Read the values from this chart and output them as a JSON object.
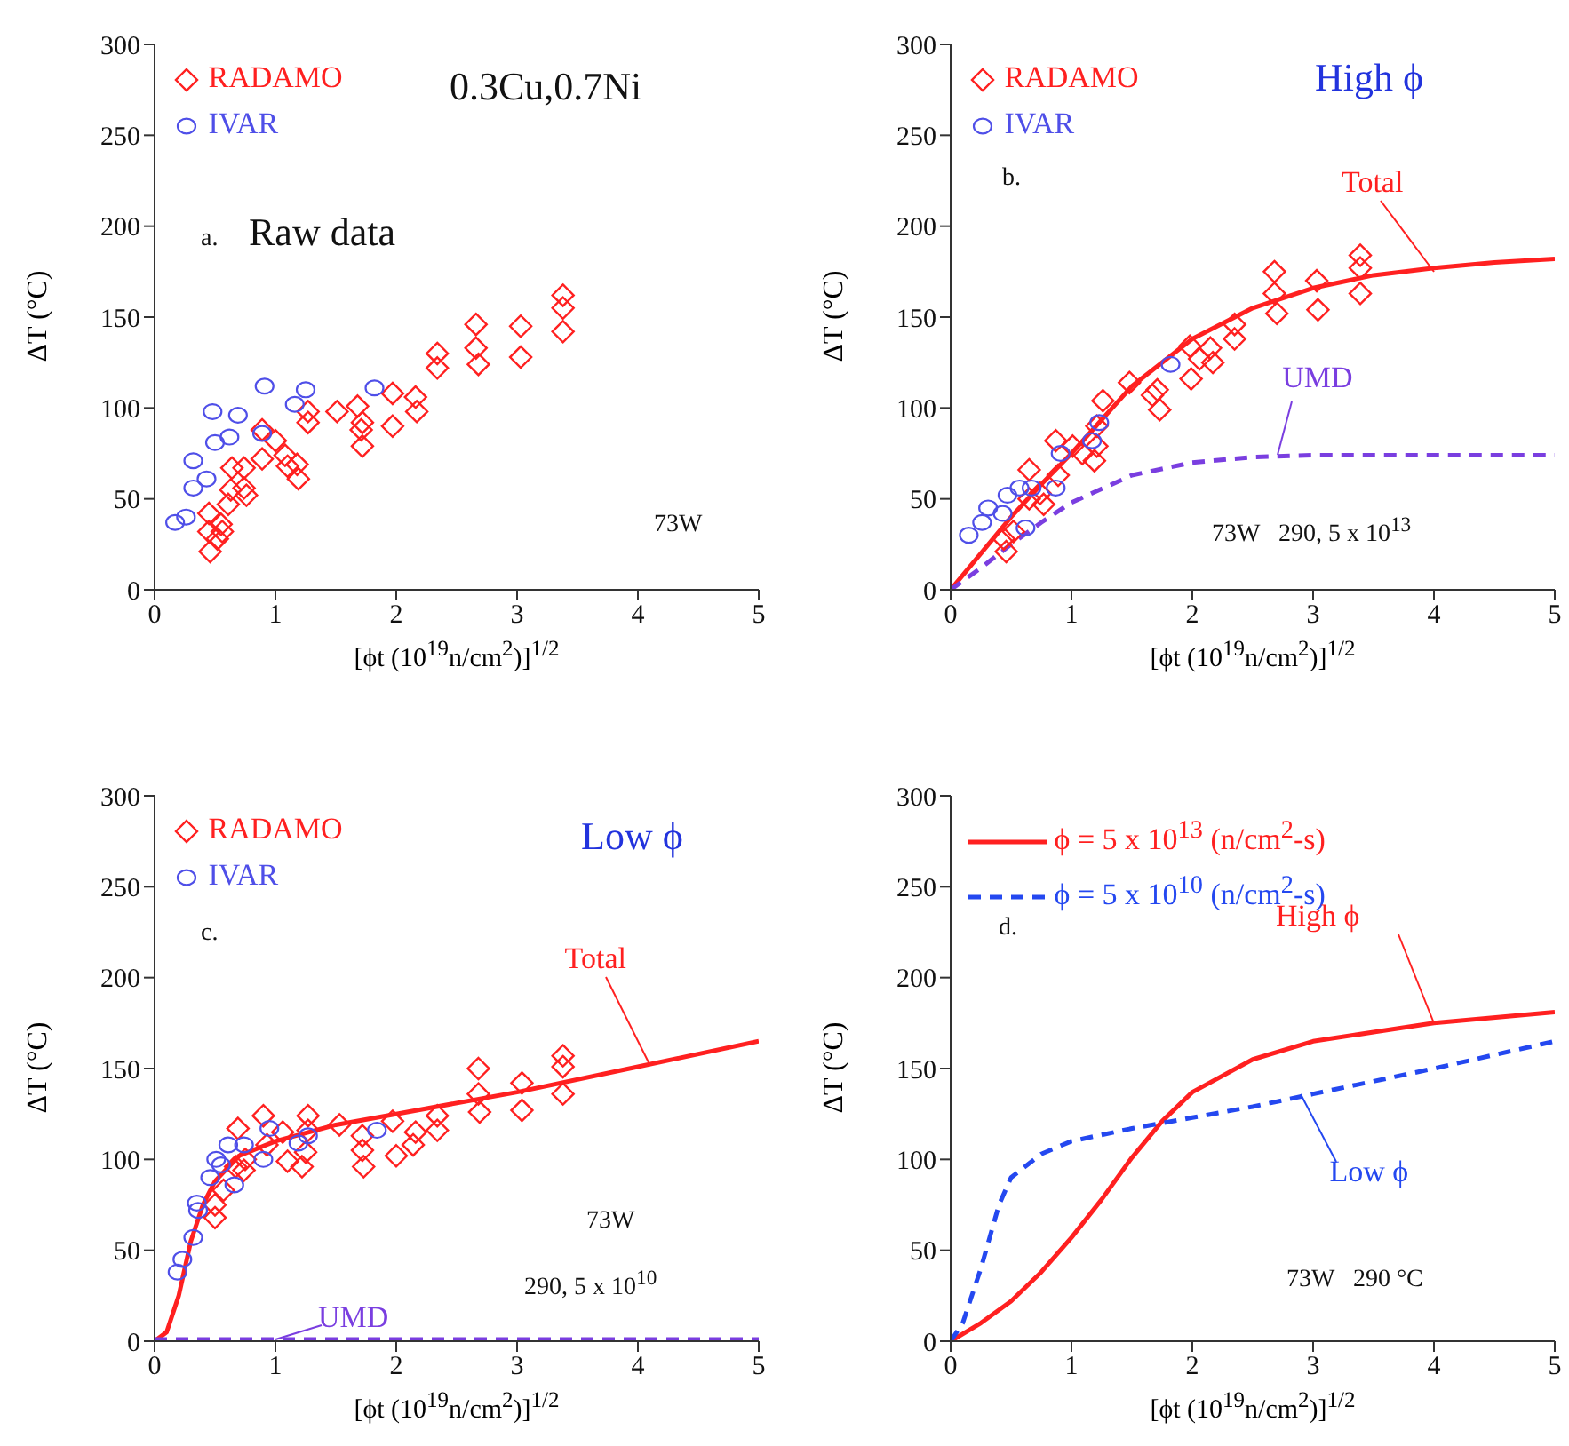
{
  "chart_data": [
    {
      "type": "scatter",
      "xlabel": "[ϕt (10$^{19}$n/cm$^{2}$)]$^{1/2}$",
      "ylabel": "ΔT (°C)",
      "xlim": [
        0,
        5
      ],
      "ylim": [
        0,
        300
      ],
      "xticks": [
        0,
        1,
        2,
        3,
        4,
        5
      ],
      "yticks": [
        0,
        50,
        100,
        150,
        200,
        250,
        300
      ],
      "legend": "top left",
      "annotations": [
        "0.3Cu,0.7Ni",
        "a.",
        "Raw data",
        "73W"
      ],
      "series": [
        {
          "name": "RADAMO",
          "color": "#ff2020",
          "marker": "diamond",
          "x": [
            0.46,
            0.45,
            0.45,
            0.55,
            0.56,
            0.52,
            0.61,
            0.63,
            0.64,
            0.74,
            0.74,
            0.76,
            0.89,
            0.89,
            1.0,
            1.08,
            1.1,
            1.18,
            1.19,
            1.27,
            1.27,
            1.51,
            1.68,
            1.72,
            1.72,
            1.71,
            1.97,
            1.97,
            2.16,
            2.17,
            2.34,
            2.34,
            2.66,
            2.66,
            2.68,
            3.03,
            3.03,
            3.38,
            3.38,
            3.38
          ],
          "values": [
            21,
            32,
            42,
            36,
            32,
            28,
            47,
            55,
            67,
            67,
            56,
            52,
            72,
            88,
            82,
            74,
            68,
            69,
            61,
            92,
            98,
            98,
            101,
            92,
            79,
            88,
            108,
            90,
            106,
            98,
            130,
            122,
            146,
            133,
            124,
            145,
            128,
            162,
            155,
            142
          ]
        },
        {
          "name": "IVAR",
          "color": "#4f4fe8",
          "marker": "circle",
          "x": [
            0.17,
            0.26,
            0.32,
            0.32,
            0.43,
            0.48,
            0.5,
            0.62,
            0.69,
            0.89,
            0.91,
            1.16,
            1.25,
            1.82
          ],
          "values": [
            37,
            40,
            56,
            71,
            61,
            98,
            81,
            84,
            96,
            86,
            112,
            102,
            110,
            111
          ]
        }
      ]
    },
    {
      "type": "scatter",
      "xlabel": "[ϕt (10$^{19}$n/cm$^{2}$)]$^{1/2}$",
      "ylabel": "ΔT (°C)",
      "xlim": [
        0,
        5
      ],
      "ylim": [
        0,
        300
      ],
      "xticks": [
        0,
        1,
        2,
        3,
        4,
        5
      ],
      "yticks": [
        0,
        50,
        100,
        150,
        200,
        250,
        300
      ],
      "legend": "top left",
      "annotations": [
        "High ϕ",
        "b.",
        "73W   290, 5 x 10$^{13}$",
        {
          "text": "Total",
          "x": 4.0,
          "y": 175
        },
        {
          "text": "UMD",
          "x": 2.7,
          "y": 74
        }
      ],
      "series": [
        {
          "name": "RADAMO",
          "color": "#ff2020",
          "marker": "diamond",
          "x": [
            0.46,
            0.44,
            0.52,
            0.65,
            0.65,
            0.74,
            0.77,
            0.87,
            0.89,
            1.01,
            1.09,
            1.19,
            1.21,
            1.21,
            1.26,
            1.48,
            1.67,
            1.71,
            1.73,
            1.98,
            1.99,
            2.06,
            2.15,
            2.17,
            2.35,
            2.35,
            2.68,
            2.68,
            2.7,
            3.03,
            3.04,
            3.39,
            3.39,
            3.39
          ],
          "values": [
            21,
            28,
            32,
            66,
            50,
            53,
            47,
            82,
            63,
            79,
            75,
            71,
            79,
            90,
            104,
            114,
            107,
            110,
            99,
            134,
            116,
            127,
            133,
            125,
            146,
            138,
            175,
            163,
            152,
            170,
            154,
            184,
            177,
            163
          ]
        },
        {
          "name": "IVAR",
          "color": "#4f4fe8",
          "marker": "circle",
          "x": [
            0.15,
            0.26,
            0.31,
            0.43,
            0.47,
            0.57,
            0.67,
            0.62,
            0.87,
            0.91,
            1.17,
            1.23,
            1.82
          ],
          "values": [
            30,
            37,
            45,
            42,
            52,
            56,
            56,
            34,
            56,
            75,
            82,
            92,
            124
          ]
        },
        {
          "type": "line",
          "color": "#ff2020",
          "line_style": "solid",
          "x": [
            0,
            0.25,
            0.5,
            0.75,
            1,
            1.5,
            2,
            2.5,
            3,
            3.5,
            4,
            4.5,
            5
          ],
          "values": [
            0,
            20,
            40,
            58,
            75,
            112,
            138,
            155,
            166,
            173,
            177,
            180,
            182
          ]
        },
        {
          "type": "line",
          "color": "#7a3ee0",
          "line_style": "dashed",
          "x": [
            0,
            0.25,
            0.5,
            0.75,
            1,
            1.5,
            2,
            2.5,
            3,
            5
          ],
          "values": [
            0,
            12,
            25,
            37,
            48,
            63,
            70,
            73,
            74,
            74
          ]
        }
      ]
    },
    {
      "type": "scatter",
      "xlabel": "[ϕt (10$^{19}$n/cm$^{2}$)]$^{1/2}$",
      "ylabel": "ΔT (°C)",
      "xlim": [
        0,
        5
      ],
      "ylim": [
        0,
        300
      ],
      "xticks": [
        0,
        1,
        2,
        3,
        4,
        5
      ],
      "yticks": [
        0,
        50,
        100,
        150,
        200,
        250,
        300
      ],
      "legend": "top left",
      "annotations": [
        "Low ϕ",
        "c.",
        "73W",
        "290, 5 x 10$^{10}$",
        {
          "text": "Total",
          "x": 4.1,
          "y": 151
        },
        {
          "text": "UMD",
          "x": 1.0,
          "y": 1
        }
      ],
      "series": [
        {
          "name": "RADAMO",
          "color": "#ff2020",
          "marker": "diamond",
          "x": [
            0.5,
            0.5,
            0.57,
            0.67,
            0.69,
            0.74,
            0.75,
            0.9,
            0.93,
            1.06,
            1.1,
            1.22,
            1.25,
            1.27,
            1.27,
            1.53,
            1.72,
            1.72,
            1.73,
            1.97,
            2.0,
            2.14,
            2.16,
            2.34,
            2.34,
            2.68,
            2.68,
            2.69,
            3.04,
            3.04,
            3.38,
            3.38,
            3.38
          ],
          "values": [
            68,
            75,
            83,
            96,
            117,
            94,
            100,
            124,
            108,
            115,
            99,
            96,
            104,
            124,
            116,
            119,
            113,
            105,
            96,
            121,
            102,
            108,
            115,
            124,
            116,
            150,
            136,
            126,
            142,
            127,
            157,
            151,
            136
          ]
        },
        {
          "name": "IVAR",
          "color": "#4f4fe8",
          "marker": "circle",
          "x": [
            0.19,
            0.23,
            0.32,
            0.35,
            0.36,
            0.46,
            0.51,
            0.55,
            0.61,
            0.66,
            0.74,
            0.9,
            0.95,
            1.19,
            1.27,
            1.84
          ],
          "values": [
            38,
            45,
            57,
            76,
            72,
            90,
            100,
            97,
            108,
            86,
            108,
            100,
            117,
            109,
            113,
            116
          ]
        },
        {
          "type": "line",
          "color": "#ff2020",
          "line_style": "solid",
          "x": [
            0,
            0.1,
            0.2,
            0.3,
            0.4,
            0.5,
            0.7,
            1,
            1.5,
            2,
            3,
            4,
            5
          ],
          "values": [
            0,
            5,
            25,
            55,
            75,
            88,
            102,
            110,
            119,
            125,
            137,
            151,
            165
          ]
        },
        {
          "type": "line",
          "color": "#7a3ee0",
          "line_style": "dashed",
          "x": [
            0,
            5
          ],
          "values": [
            1,
            1
          ]
        }
      ]
    },
    {
      "type": "line",
      "xlabel": "[ϕt (10$^{19}$n/cm$^{2}$)]$^{1/2}$",
      "ylabel": "ΔT (°C)",
      "xlim": [
        0,
        5
      ],
      "ylim": [
        0,
        300
      ],
      "xticks": [
        0,
        1,
        2,
        3,
        4,
        5
      ],
      "yticks": [
        0,
        50,
        100,
        150,
        200,
        250,
        300
      ],
      "legend": "top left",
      "annotations": [
        "d.",
        "73W   290 °C",
        {
          "text": "High ϕ",
          "x": 4.0,
          "y": 175
        },
        {
          "text": "Low ϕ",
          "x": 2.9,
          "y": 136
        }
      ],
      "series": [
        {
          "name": "ϕ = 5 x 10$^{13}$ (n/cm$^{2}$-s)",
          "color": "#ff2020",
          "line_style": "solid",
          "x": [
            0,
            0.25,
            0.5,
            0.75,
            1,
            1.25,
            1.5,
            1.75,
            2,
            2.5,
            3,
            3.5,
            4,
            5
          ],
          "values": [
            0,
            10,
            22,
            38,
            57,
            78,
            101,
            121,
            137,
            155,
            165,
            170,
            175,
            181
          ]
        },
        {
          "name": "ϕ = 5 x 10$^{10}$ (n/cm$^{2}$-s)",
          "color": "#2448f0",
          "line_style": "dashed",
          "x": [
            0,
            0.1,
            0.25,
            0.4,
            0.5,
            0.75,
            1,
            1.5,
            2,
            2.5,
            3,
            4,
            5
          ],
          "values": [
            0,
            10,
            40,
            75,
            90,
            103,
            110,
            117,
            123,
            129,
            136,
            150,
            165
          ]
        }
      ]
    }
  ]
}
